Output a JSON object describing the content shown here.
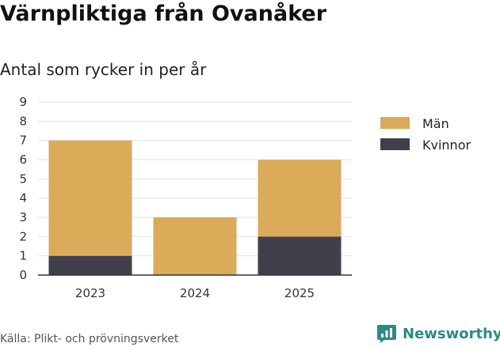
{
  "title": "Värnpliktiga från Ovanåker",
  "subtitle": "Antal som rycker in per år",
  "source": "Källa: Plikt- och prövningsverket",
  "brand": {
    "name": "Newsworthy",
    "icon": "newsworthy-logo-icon",
    "color": "#2b8a88"
  },
  "chart_data": {
    "type": "bar",
    "stacked": true,
    "categories": [
      "2023",
      "2024",
      "2025"
    ],
    "series": [
      {
        "name": "Kvinnor",
        "values": [
          1,
          0,
          2
        ],
        "color": "#403f4c"
      },
      {
        "name": "Män",
        "values": [
          6,
          3,
          4
        ],
        "color": "#dbab5a"
      }
    ],
    "legend": {
      "placement": "right",
      "order": [
        "Män",
        "Kvinnor"
      ]
    },
    "yticks": [
      0,
      1,
      2,
      3,
      4,
      5,
      6,
      7,
      8,
      9
    ],
    "ylim": [
      0,
      9
    ],
    "grid": true,
    "title": "Värnpliktiga från Ovanåker",
    "subtitle": "Antal som rycker in per år",
    "xlabel": "",
    "ylabel": ""
  }
}
